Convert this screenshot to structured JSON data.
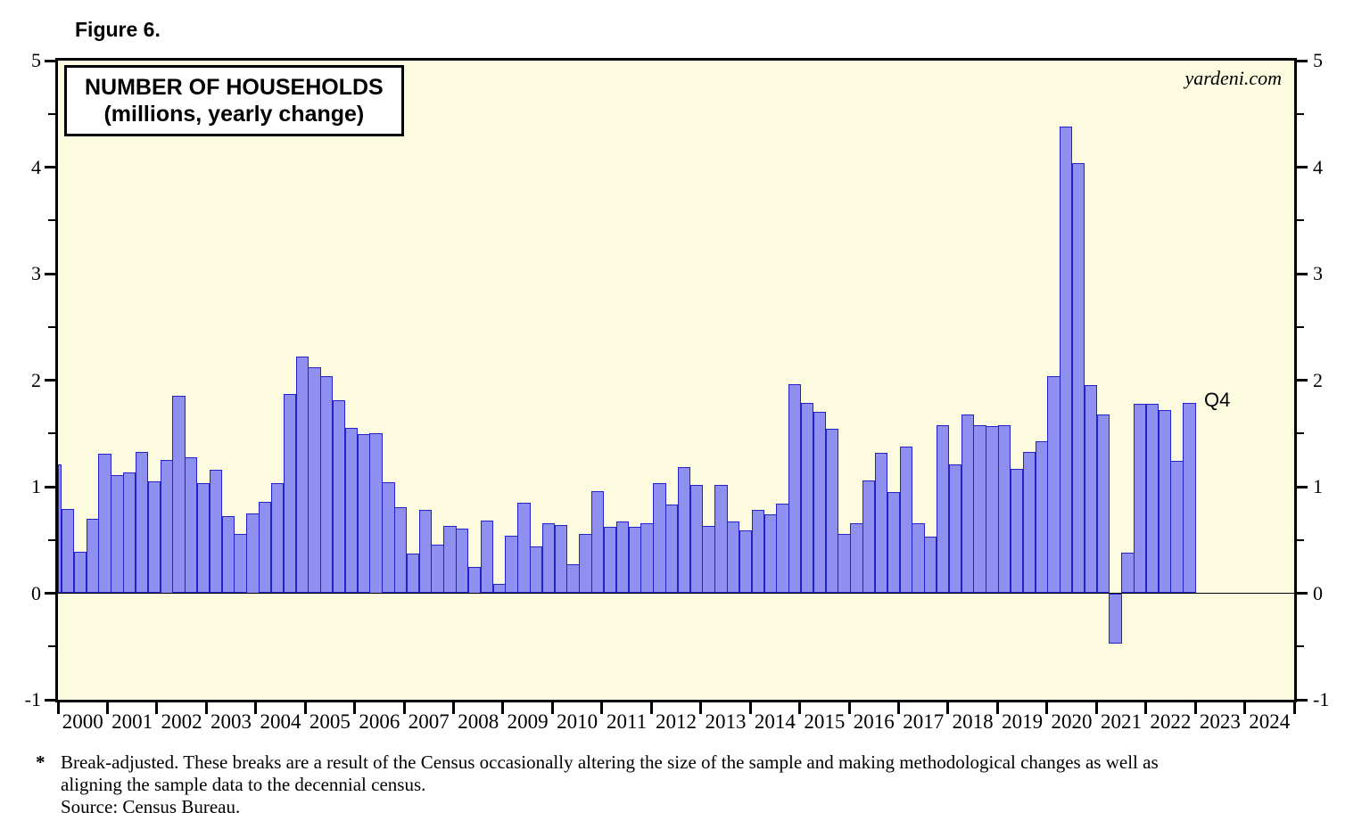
{
  "figure_label": "Figure 6.",
  "title": {
    "line1": "NUMBER OF HOUSEHOLDS",
    "line2": "(millions, yearly change)"
  },
  "watermark": "yardeni.com",
  "q4_annotation": "Q4",
  "footnote": {
    "marker": "*",
    "line1": "Break-adjusted. These breaks are a result of the Census occasionally altering the size of the sample and making methodological changes as well as",
    "line2": "aligning the sample data to the decennial census.",
    "line3": "Source: Census Bureau."
  },
  "colors": {
    "plot_background": "#FCFBE0",
    "bar_fill": "#8F8FF0",
    "bar_border": "#2323CC",
    "axis_color": "#000000"
  },
  "axes": {
    "y_min": -1,
    "y_max": 5,
    "y_major_ticks": [
      5,
      4,
      3,
      2,
      1,
      0,
      -1
    ],
    "y_minor_step": 0.5,
    "grid": false,
    "x_year_labels": [
      "2000",
      "2001",
      "2002",
      "2003",
      "2004",
      "2005",
      "2006",
      "2007",
      "2008",
      "2009",
      "2010",
      "2011",
      "2012",
      "2013",
      "2014",
      "2015",
      "2016",
      "2017",
      "2018",
      "2019",
      "2020",
      "2021",
      "2022",
      "2023",
      "2024"
    ]
  },
  "chart_data": {
    "type": "bar",
    "title": "NUMBER OF HOUSEHOLDS (millions, yearly change)",
    "frequency": "quarterly",
    "start_period": "2000Q1",
    "end_period": "2022Q4",
    "last_bar_label": "Q4",
    "ylim": [
      -1,
      5
    ],
    "legend_position": "none",
    "partial_first_bar": {
      "period": "1999Q4",
      "value": 1.21
    },
    "values": [
      0.79,
      0.39,
      0.7,
      1.31,
      1.11,
      1.13,
      1.33,
      1.05,
      1.25,
      1.85,
      1.28,
      1.03,
      1.16,
      0.72,
      0.56,
      0.75,
      0.86,
      1.03,
      1.87,
      2.22,
      2.12,
      2.04,
      1.81,
      1.55,
      1.49,
      1.5,
      1.04,
      0.81,
      0.37,
      0.78,
      0.46,
      0.63,
      0.61,
      0.25,
      0.68,
      0.09,
      0.54,
      0.85,
      0.44,
      0.66,
      0.64,
      0.27,
      0.56,
      0.96,
      0.62,
      0.67,
      0.62,
      0.66,
      1.03,
      0.83,
      1.18,
      1.02,
      0.63,
      1.02,
      0.67,
      0.59,
      0.78,
      0.74,
      0.84,
      1.96,
      1.79,
      1.7,
      1.54,
      0.56,
      0.66,
      1.06,
      1.32,
      0.95,
      1.38,
      0.66,
      0.53,
      1.58,
      1.21,
      1.68,
      1.58,
      1.57,
      1.58,
      1.17,
      1.33,
      1.43,
      2.04,
      4.38,
      4.04,
      1.95,
      1.68,
      -0.47,
      0.38,
      1.78,
      1.78,
      1.72,
      1.24,
      1.79
    ]
  }
}
